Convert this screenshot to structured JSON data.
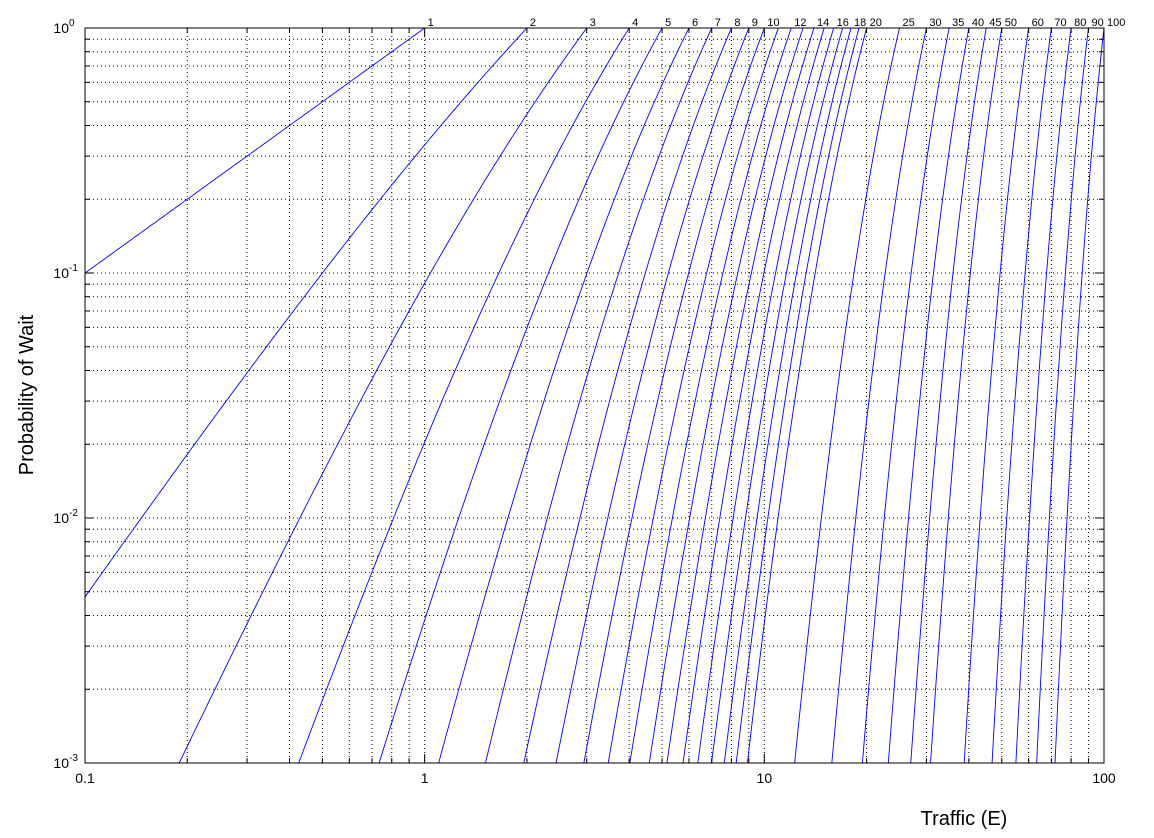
{
  "chart_data": {
    "type": "line",
    "title": "",
    "xlabel": "Traffic (E)",
    "ylabel": "Probability of Wait",
    "xscale": "log",
    "yscale": "log",
    "xlim": [
      0.1,
      100
    ],
    "ylim": [
      0.001,
      1
    ],
    "grid": true,
    "grid_style": "dotted",
    "line_color": "#0000ff",
    "x_ticks": [
      {
        "value": 0.1,
        "label": "0.1"
      },
      {
        "value": 1,
        "label": "1"
      },
      {
        "value": 10,
        "label": "10"
      },
      {
        "value": 100,
        "label": "100"
      }
    ],
    "y_ticks": [
      {
        "value": 1,
        "base": "10",
        "exp": "0"
      },
      {
        "value": 0.1,
        "base": "10",
        "exp": "-1"
      },
      {
        "value": 0.01,
        "base": "10",
        "exp": "-2"
      },
      {
        "value": 0.001,
        "base": "10",
        "exp": "-3"
      }
    ],
    "curve_model": "Erlang C probability of wait vs offered traffic, one curve per number of servers",
    "curves": [
      {
        "servers": 1,
        "label": "1"
      },
      {
        "servers": 2,
        "label": "2"
      },
      {
        "servers": 3,
        "label": "3"
      },
      {
        "servers": 4,
        "label": "4"
      },
      {
        "servers": 5,
        "label": "5"
      },
      {
        "servers": 6,
        "label": "6"
      },
      {
        "servers": 7,
        "label": "7"
      },
      {
        "servers": 8,
        "label": "8"
      },
      {
        "servers": 9,
        "label": "9"
      },
      {
        "servers": 10,
        "label": "10"
      },
      {
        "servers": 11,
        "label": ""
      },
      {
        "servers": 12,
        "label": "12"
      },
      {
        "servers": 13,
        "label": ""
      },
      {
        "servers": 14,
        "label": "14"
      },
      {
        "servers": 15,
        "label": ""
      },
      {
        "servers": 16,
        "label": "16"
      },
      {
        "servers": 17,
        "label": ""
      },
      {
        "servers": 18,
        "label": "18"
      },
      {
        "servers": 19,
        "label": ""
      },
      {
        "servers": 20,
        "label": "20"
      },
      {
        "servers": 25,
        "label": "25"
      },
      {
        "servers": 30,
        "label": "30"
      },
      {
        "servers": 35,
        "label": "35"
      },
      {
        "servers": 40,
        "label": "40"
      },
      {
        "servers": 45,
        "label": "45"
      },
      {
        "servers": 50,
        "label": "50"
      },
      {
        "servers": 60,
        "label": "60"
      },
      {
        "servers": 70,
        "label": "70"
      },
      {
        "servers": 80,
        "label": "80"
      },
      {
        "servers": 90,
        "label": "90"
      },
      {
        "servers": 100,
        "label": "100"
      }
    ]
  }
}
